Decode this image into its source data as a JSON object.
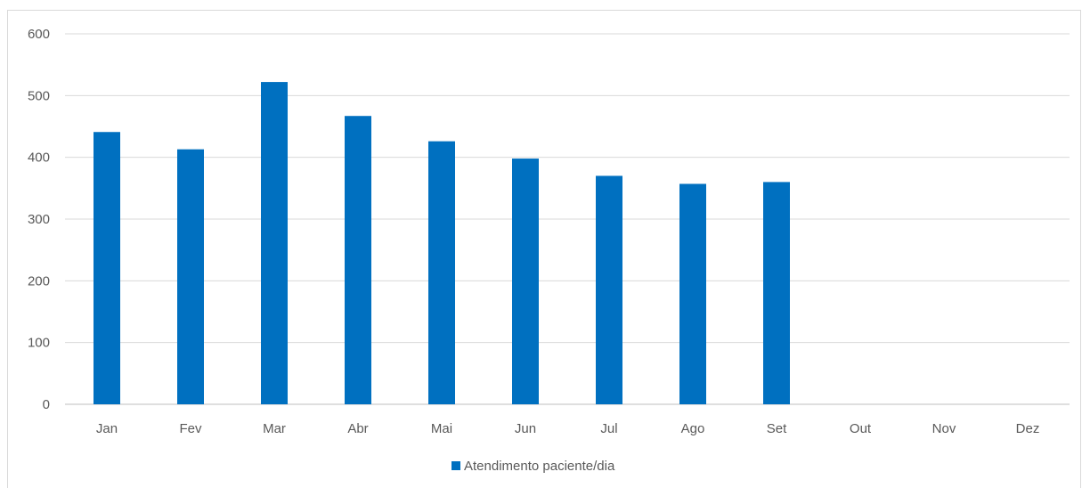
{
  "chart_data": {
    "type": "bar",
    "categories": [
      "Jan",
      "Fev",
      "Mar",
      "Abr",
      "Mai",
      "Jun",
      "Jul",
      "Ago",
      "Set",
      "Out",
      "Nov",
      "Dez"
    ],
    "series": [
      {
        "name": "Atendimento paciente/dia",
        "values": [
          441,
          413,
          522,
          467,
          426,
          398,
          370,
          357,
          360,
          null,
          null,
          null
        ],
        "color": "#0070c0"
      }
    ],
    "ylim": [
      0,
      600
    ],
    "yticks": [
      0,
      100,
      200,
      300,
      400,
      500,
      600
    ],
    "grid": true,
    "legend_position": "bottom",
    "colors": {
      "gridline": "#d9d9d9",
      "axis": "#bfbfbf",
      "text": "#595959"
    }
  }
}
